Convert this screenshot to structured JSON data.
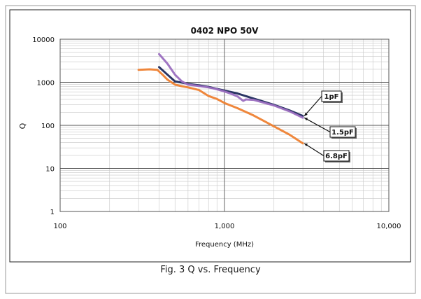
{
  "caption": "Fig. 3 Q vs. Frequency",
  "chart_data": {
    "type": "line",
    "title": "0402 NPO 50V",
    "xlabel": "Frequency (MHz)",
    "ylabel": "Q",
    "xscale": "log",
    "yscale": "log",
    "xlim": [
      100,
      10000
    ],
    "ylim": [
      1,
      10000
    ],
    "x_ticks": [
      {
        "value": 100,
        "label": "100"
      },
      {
        "value": 1000,
        "label": "1,000"
      },
      {
        "value": 10000,
        "label": "10,000"
      }
    ],
    "y_ticks": [
      {
        "value": 1,
        "label": "1"
      },
      {
        "value": 10,
        "label": "10"
      },
      {
        "value": 100,
        "label": "100"
      },
      {
        "value": 1000,
        "label": "1000"
      },
      {
        "value": 10000,
        "label": "10000"
      }
    ],
    "grid": true,
    "legend": "callout labels at right end of each curve",
    "series": [
      {
        "name": "1pF",
        "color": "#1f2a5c",
        "points": [
          [
            400,
            2250
          ],
          [
            450,
            1500
          ],
          [
            500,
            1050
          ],
          [
            600,
            920
          ],
          [
            700,
            850
          ],
          [
            800,
            780
          ],
          [
            900,
            700
          ],
          [
            1000,
            640
          ],
          [
            1200,
            550
          ],
          [
            1500,
            420
          ],
          [
            2000,
            300
          ],
          [
            2500,
            220
          ],
          [
            3000,
            165
          ]
        ]
      },
      {
        "name": "1.5pF",
        "color": "#9b6fc0",
        "points": [
          [
            400,
            4500
          ],
          [
            450,
            2700
          ],
          [
            500,
            1500
          ],
          [
            550,
            1050
          ],
          [
            600,
            880
          ],
          [
            700,
            820
          ],
          [
            800,
            760
          ],
          [
            900,
            690
          ],
          [
            1000,
            610
          ],
          [
            1100,
            540
          ],
          [
            1200,
            470
          ],
          [
            1300,
            370
          ],
          [
            1350,
            400
          ],
          [
            1500,
            390
          ],
          [
            2000,
            290
          ],
          [
            2500,
            210
          ],
          [
            3000,
            150
          ]
        ]
      },
      {
        "name": "6.8pF",
        "color": "#ee8132",
        "points": [
          [
            300,
            1950
          ],
          [
            350,
            2000
          ],
          [
            390,
            1950
          ],
          [
            420,
            1500
          ],
          [
            450,
            1150
          ],
          [
            500,
            880
          ],
          [
            550,
            810
          ],
          [
            600,
            760
          ],
          [
            700,
            660
          ],
          [
            800,
            480
          ],
          [
            900,
            410
          ],
          [
            1000,
            330
          ],
          [
            1200,
            250
          ],
          [
            1500,
            170
          ],
          [
            2000,
            95
          ],
          [
            2500,
            60
          ],
          [
            3000,
            38
          ]
        ]
      }
    ]
  }
}
